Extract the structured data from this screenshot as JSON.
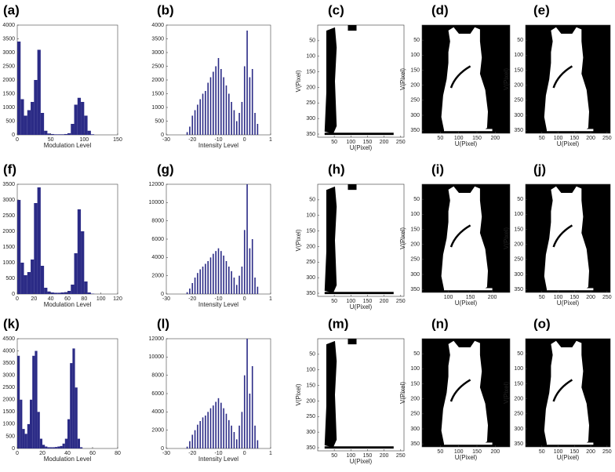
{
  "chart_data": [
    {
      "type": "histogram",
      "label": "(a)",
      "xlabel": "Modulation Level",
      "color": "#2b2b86",
      "bins": [
        0,
        5,
        10,
        15,
        20,
        25,
        30,
        35,
        40,
        45,
        50,
        55,
        60,
        65,
        70,
        75,
        80,
        85,
        90,
        95,
        100,
        105,
        110,
        115,
        120,
        125,
        130,
        135,
        140,
        145,
        150
      ],
      "values": [
        3400,
        1300,
        700,
        900,
        1200,
        2000,
        3100,
        800,
        150,
        50,
        30,
        20,
        20,
        20,
        30,
        60,
        400,
        1100,
        1350,
        1200,
        700,
        150,
        20,
        0,
        0,
        0,
        0,
        0,
        0,
        0
      ],
      "xlim": [
        0,
        150
      ],
      "xticks": [
        0,
        50,
        100,
        150
      ],
      "ylim": [
        0,
        4000
      ],
      "yticks": [
        0,
        500,
        1000,
        1500,
        2000,
        2500,
        3000,
        3500,
        4000
      ]
    },
    {
      "type": "bar",
      "label": "(b)",
      "xlabel": "Intensity Level",
      "color": "#2b2b86",
      "x": [
        -22,
        -21,
        -20,
        -19,
        -18,
        -17,
        -16,
        -15,
        -14,
        -13,
        -12,
        -11,
        -10,
        -9,
        -8,
        -7,
        -6,
        -5,
        -4,
        -3,
        -2,
        -1,
        0,
        1,
        2,
        3,
        4,
        5
      ],
      "values": [
        100,
        300,
        700,
        900,
        1100,
        1300,
        1500,
        1600,
        1900,
        2100,
        2300,
        2500,
        2800,
        2400,
        2100,
        1800,
        1500,
        1200,
        900,
        500,
        800,
        1200,
        2500,
        3800,
        2100,
        2400,
        800,
        400
      ],
      "xlim": [
        -30,
        10
      ],
      "xticks": [
        -30,
        -20,
        -10,
        0,
        {
          "value": 10,
          "label": "1"
        }
      ],
      "ylim": [
        0,
        4000
      ],
      "yticks": [
        0,
        500,
        1000,
        1500,
        2000,
        2500,
        3000,
        3500,
        4000
      ]
    },
    {
      "type": "image",
      "label": "(c)",
      "xlabel": "U(Pixel)",
      "ylabel": "V(Pixel)",
      "background": "white",
      "xlim": [
        0,
        260
      ],
      "xticks": [
        50,
        100,
        150,
        200,
        250
      ],
      "ylim": [
        360,
        0
      ],
      "yticks": [
        50,
        100,
        150,
        200,
        250,
        300,
        350
      ]
    },
    {
      "type": "image",
      "label": "(d)",
      "xlabel": "U(Pixel)",
      "ylabel": "V(Pixel)",
      "background": "black",
      "xlim": [
        0,
        240
      ],
      "xticks": [
        50,
        100,
        150,
        200
      ],
      "ylim": [
        360,
        0
      ],
      "yticks": [
        50,
        100,
        150,
        200,
        250,
        300,
        350
      ]
    },
    {
      "type": "image",
      "label": "(e)",
      "xlabel": "U(Pixel)",
      "ylabel": "V(Pixel)",
      "background": "black",
      "xlim": [
        0,
        260
      ],
      "xticks": [
        50,
        100,
        150,
        200,
        250
      ],
      "ylim": [
        360,
        0
      ],
      "yticks": [
        50,
        100,
        150,
        200,
        250,
        300,
        350
      ]
    },
    {
      "type": "histogram",
      "label": "(f)",
      "xlabel": "Modulation Level",
      "color": "#2b2b86",
      "bins": [
        0,
        4,
        8,
        12,
        16,
        20,
        24,
        28,
        32,
        36,
        40,
        44,
        48,
        52,
        56,
        60,
        64,
        68,
        72,
        76,
        80,
        84,
        88,
        92,
        96,
        100,
        104,
        108,
        112,
        116,
        120
      ],
      "values": [
        3000,
        1000,
        600,
        700,
        1100,
        2900,
        3400,
        900,
        200,
        80,
        50,
        40,
        40,
        50,
        60,
        100,
        300,
        1300,
        2700,
        2000,
        400,
        50,
        10,
        0,
        0,
        0,
        0,
        0,
        0,
        0
      ],
      "xlim": [
        0,
        120
      ],
      "xticks": [
        0,
        20,
        40,
        60,
        80,
        100,
        120
      ],
      "ylim": [
        0,
        3500
      ],
      "yticks": [
        0,
        500,
        1000,
        1500,
        2000,
        2500,
        3000,
        3500
      ]
    },
    {
      "type": "bar",
      "label": "(g)",
      "xlabel": "Intensity Level",
      "color": "#2b2b86",
      "x": [
        -22,
        -21,
        -20,
        -19,
        -18,
        -17,
        -16,
        -15,
        -14,
        -13,
        -12,
        -11,
        -10,
        -9,
        -8,
        -7,
        -6,
        -5,
        -4,
        -3,
        -2,
        -1,
        0,
        1,
        2,
        3,
        4,
        5
      ],
      "values": [
        200,
        600,
        1200,
        1800,
        2300,
        2700,
        3000,
        3300,
        3600,
        4000,
        4400,
        4700,
        5000,
        4700,
        4200,
        3600,
        3000,
        2500,
        1800,
        1000,
        2000,
        3000,
        7000,
        12000,
        5000,
        6000,
        1800,
        800
      ],
      "xlim": [
        -30,
        10
      ],
      "xticks": [
        -30,
        -20,
        -10,
        0,
        {
          "value": 10,
          "label": "1"
        }
      ],
      "ylim": [
        0,
        12000
      ],
      "yticks": [
        0,
        2000,
        4000,
        6000,
        8000,
        10000,
        12000
      ]
    },
    {
      "type": "image",
      "label": "(h)",
      "xlabel": "U(Pixel)",
      "ylabel": "V(Pixel)",
      "background": "white",
      "xlim": [
        0,
        260
      ],
      "xticks": [
        50,
        100,
        150,
        200,
        250
      ],
      "ylim": [
        360,
        0
      ],
      "yticks": [
        50,
        100,
        150,
        200,
        250,
        300,
        350
      ]
    },
    {
      "type": "image",
      "label": "(i)",
      "xlabel": "U(Pixel)",
      "ylabel": "V(Pixel)",
      "background": "black",
      "xlim": [
        40,
        240
      ],
      "xticks": [
        100,
        150,
        200
      ],
      "ylim": [
        360,
        0
      ],
      "yticks": [
        50,
        100,
        150,
        200,
        250,
        300,
        350
      ]
    },
    {
      "type": "image",
      "label": "(j)",
      "xlabel": "U(Pixel)",
      "ylabel": "V(Pixel)",
      "background": "black",
      "xlim": [
        0,
        260
      ],
      "xticks": [
        50,
        100,
        150,
        200,
        250
      ],
      "ylim": [
        360,
        0
      ],
      "yticks": [
        50,
        100,
        150,
        200,
        250,
        300,
        350
      ]
    },
    {
      "type": "histogram",
      "label": "(k)",
      "xlabel": "Modulation Level",
      "color": "#2b2b86",
      "bins": [
        0,
        2,
        4,
        6,
        8,
        10,
        12,
        14,
        16,
        18,
        20,
        22,
        24,
        26,
        28,
        30,
        32,
        34,
        36,
        38,
        40,
        42,
        44,
        46,
        48,
        50,
        52,
        54,
        56,
        58,
        60,
        62,
        64,
        66,
        68,
        70,
        72,
        74,
        76,
        78,
        80
      ],
      "values": [
        3800,
        2000,
        800,
        600,
        1000,
        2000,
        3800,
        4000,
        1500,
        400,
        150,
        80,
        50,
        50,
        50,
        60,
        80,
        100,
        200,
        400,
        1200,
        3500,
        4100,
        2500,
        400,
        50,
        0,
        0,
        0,
        0,
        0,
        0,
        0,
        0,
        0,
        0,
        0,
        0,
        0,
        0
      ],
      "xlim": [
        0,
        80
      ],
      "xticks": [
        0,
        20,
        40,
        60,
        80
      ],
      "ylim": [
        0,
        4500
      ],
      "yticks": [
        0,
        500,
        1000,
        1500,
        2000,
        2500,
        3000,
        3500,
        4000,
        4500
      ]
    },
    {
      "type": "bar",
      "label": "(l)",
      "xlabel": "Intensity Level",
      "color": "#2b2b86",
      "x": [
        -22,
        -21,
        -20,
        -19,
        -18,
        -17,
        -16,
        -15,
        -14,
        -13,
        -12,
        -11,
        -10,
        -9,
        -8,
        -7,
        -6,
        -5,
        -4,
        -3,
        -2,
        -1,
        0,
        1,
        2,
        3,
        4,
        5
      ],
      "values": [
        200,
        800,
        1500,
        2000,
        2600,
        3000,
        3400,
        3600,
        4000,
        4400,
        4700,
        5100,
        5500,
        5000,
        4400,
        3800,
        3100,
        2500,
        1800,
        1000,
        2500,
        4000,
        8000,
        12000,
        6000,
        9000,
        2500,
        900
      ],
      "xlim": [
        -30,
        10
      ],
      "xticks": [
        -30,
        -20,
        -10,
        0,
        {
          "value": 10,
          "label": "1"
        }
      ],
      "ylim": [
        0,
        12000
      ],
      "yticks": [
        0,
        2000,
        4000,
        6000,
        8000,
        10000,
        12000
      ]
    },
    {
      "type": "image",
      "label": "(m)",
      "xlabel": "U(Pixel)",
      "ylabel": "V(Pixel)",
      "background": "white",
      "xlim": [
        0,
        260
      ],
      "xticks": [
        50,
        100,
        150,
        200,
        250
      ],
      "ylim": [
        360,
        0
      ],
      "yticks": [
        50,
        100,
        150,
        200,
        250,
        300,
        350
      ]
    },
    {
      "type": "image",
      "label": "(n)",
      "xlabel": "U(Pixel)",
      "ylabel": "V(Pixel)",
      "background": "black",
      "xlim": [
        0,
        240
      ],
      "xticks": [
        50,
        100,
        150,
        200
      ],
      "ylim": [
        360,
        0
      ],
      "yticks": [
        50,
        100,
        150,
        200,
        250,
        300,
        350
      ]
    },
    {
      "type": "image",
      "label": "(o)",
      "xlabel": "U(Pixel)",
      "ylabel": "V(Pixel)",
      "background": "black",
      "xlim": [
        0,
        260
      ],
      "xticks": [
        50,
        100,
        150,
        200,
        250
      ],
      "ylim": [
        360,
        0
      ],
      "yticks": [
        50,
        100,
        150,
        200,
        250,
        300,
        350
      ]
    }
  ]
}
